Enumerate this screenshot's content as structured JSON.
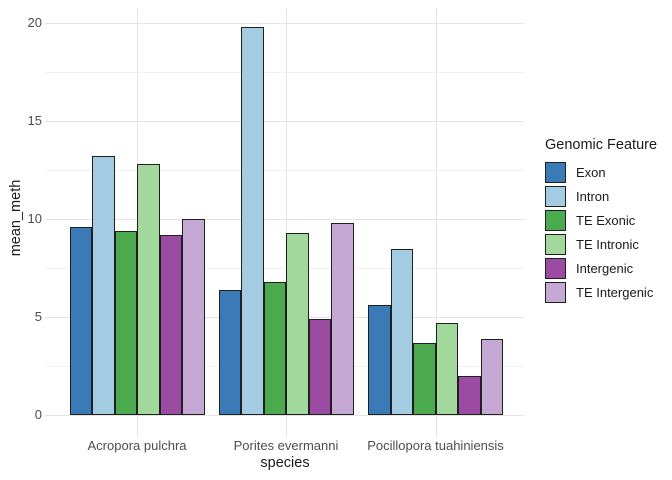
{
  "chart_data": {
    "type": "bar",
    "title": "",
    "xlabel": "species",
    "ylabel": "mean_meth",
    "categories": [
      "Acropora pulchra",
      "Porites evermanni",
      "Pocillopora tuahiniensis"
    ],
    "series": [
      {
        "name": "Exon",
        "color": "#3a7bb7",
        "values": [
          9.6,
          6.4,
          5.6
        ]
      },
      {
        "name": "Intron",
        "color": "#a3cce3",
        "values": [
          13.2,
          19.8,
          8.5
        ]
      },
      {
        "name": "TE Exonic",
        "color": "#4aaa4d",
        "values": [
          9.4,
          6.8,
          3.7
        ]
      },
      {
        "name": "TE Intronic",
        "color": "#a3d89d",
        "values": [
          12.8,
          9.3,
          4.7
        ]
      },
      {
        "name": "Intergenic",
        "color": "#9c4ba3",
        "values": [
          9.2,
          4.9,
          2.0
        ]
      },
      {
        "name": "TE Intergenic",
        "color": "#c5a8d4",
        "values": [
          10.0,
          9.8,
          3.9
        ]
      }
    ],
    "y_ticks": [
      0,
      5,
      10,
      15,
      20
    ],
    "y_minor_ticks": [
      2.5,
      7.5,
      12.5,
      17.5
    ],
    "ylim": [
      0,
      20.8
    ],
    "grid": "on",
    "legend": {
      "title": "Genomic Feature",
      "position": "right"
    },
    "bar_outline_color": "#1f1f1f"
  },
  "colors": {
    "background": "#ffffff",
    "grid_major": "#e4e4e4",
    "grid_minor": "#f1f1f1",
    "axis_text": "#4d4d4d",
    "axis_title": "#1a1a1a"
  }
}
